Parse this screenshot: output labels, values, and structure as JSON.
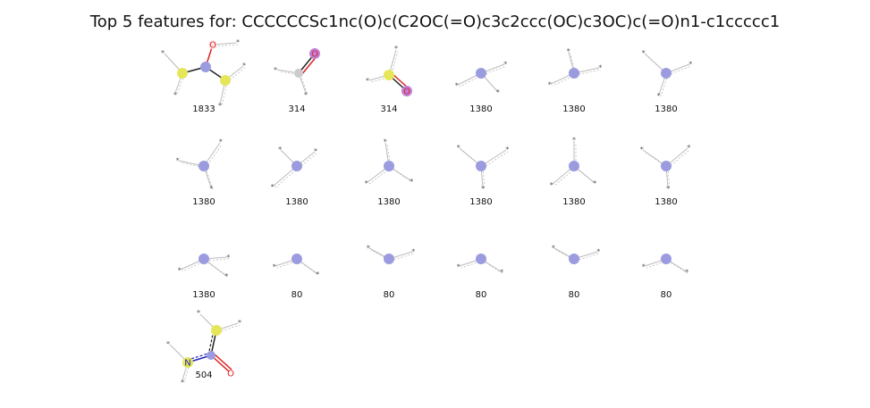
{
  "title": "Top 5 features for: CCCCCCSc1nc(O)c(C2OC(=O)c3c2ccc(OC)c3OC)c(=O)n1-c1ccccc1",
  "colors": {
    "N": "#9b9be0",
    "S": "#e6e65a",
    "O_ring": "#ee5566",
    "C": "#cccccc",
    "bond": "#222222",
    "oxy_bond": "#dd2222",
    "aro_bond": "#2222bb",
    "dummy": "#bbbbbb"
  },
  "features": [
    {
      "label": "1833",
      "kind": "frag_so"
    },
    {
      "label": "314",
      "kind": "frag_co"
    },
    {
      "label": "314",
      "kind": "frag_sO"
    },
    {
      "label": "1380",
      "kind": "n3"
    },
    {
      "label": "1380",
      "kind": "n3"
    },
    {
      "label": "1380",
      "kind": "n3"
    },
    {
      "label": "1380",
      "kind": "n3"
    },
    {
      "label": "1380",
      "kind": "n3"
    },
    {
      "label": "1380",
      "kind": "n3"
    },
    {
      "label": "1380",
      "kind": "n3"
    },
    {
      "label": "1380",
      "kind": "n3"
    },
    {
      "label": "1380",
      "kind": "n3"
    },
    {
      "label": "1380",
      "kind": "n3"
    },
    {
      "label": "80",
      "kind": "n2"
    },
    {
      "label": "80",
      "kind": "n2"
    },
    {
      "label": "80",
      "kind": "n2"
    },
    {
      "label": "80",
      "kind": "n2"
    },
    {
      "label": "80",
      "kind": "n2"
    },
    {
      "label": "504",
      "kind": "frag_ncs"
    }
  ],
  "atoms": {
    "oxygen": "O",
    "nitrogen": "N",
    "dummy": "*"
  }
}
